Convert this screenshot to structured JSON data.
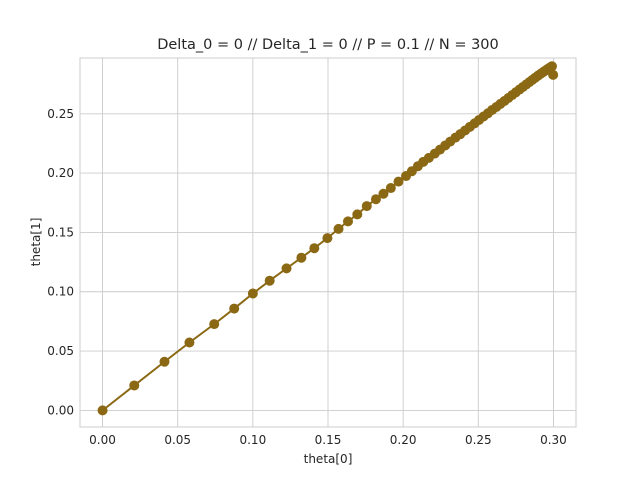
{
  "chart_data": {
    "type": "line",
    "title": "Delta_0 = 0 // Delta_1 = 0 // P = 0.1 // N = 300",
    "xlabel": "theta[0]",
    "ylabel": "theta[1]",
    "xlim": [
      -0.015,
      0.315
    ],
    "ylim": [
      -0.014,
      0.297
    ],
    "xticks": [
      "0.00",
      "0.05",
      "0.10",
      "0.15",
      "0.20",
      "0.25",
      "0.30"
    ],
    "yticks": [
      "0.00",
      "0.05",
      "0.10",
      "0.15",
      "0.20",
      "0.25"
    ],
    "grid": true,
    "marker": "circle",
    "series": [
      {
        "color": "#8b6914",
        "x": [
          0.0,
          0.0211,
          0.0412,
          0.0578,
          0.0743,
          0.0876,
          0.1,
          0.1112,
          0.1224,
          0.1323,
          0.1409,
          0.1496,
          0.157,
          0.1633,
          0.1695,
          0.1758,
          0.1819,
          0.1869,
          0.1918,
          0.1969,
          0.2019,
          0.2058,
          0.2098,
          0.2134,
          0.2171,
          0.221,
          0.2245,
          0.228,
          0.2313,
          0.2348,
          0.238,
          0.2412,
          0.2444,
          0.2475,
          0.2505,
          0.2535,
          0.2564,
          0.2592,
          0.262,
          0.2647,
          0.2674,
          0.27,
          0.2725,
          0.275,
          0.2774,
          0.2797,
          0.2819,
          0.284,
          0.286,
          0.2879,
          0.2897,
          0.2914,
          0.293,
          0.2945,
          0.2958,
          0.297,
          0.2981,
          0.299,
          0.2998
        ],
        "y": [
          0.0,
          0.021,
          0.041,
          0.0572,
          0.0727,
          0.0858,
          0.0985,
          0.1093,
          0.1197,
          0.1287,
          0.1367,
          0.1452,
          0.153,
          0.1593,
          0.1652,
          0.1722,
          0.178,
          0.1826,
          0.1874,
          0.1928,
          0.1975,
          0.2016,
          0.2058,
          0.2095,
          0.2128,
          0.2164,
          0.2198,
          0.2233,
          0.2265,
          0.2299,
          0.2328,
          0.2359,
          0.239,
          0.2419,
          0.2448,
          0.2477,
          0.2504,
          0.2532,
          0.2557,
          0.2583,
          0.2608,
          0.2633,
          0.2657,
          0.2681,
          0.2704,
          0.2726,
          0.2747,
          0.2767,
          0.2786,
          0.2804,
          0.2821,
          0.2836,
          0.285,
          0.2863,
          0.2874,
          0.2884,
          0.2893,
          0.29,
          0.2828
        ]
      }
    ]
  }
}
